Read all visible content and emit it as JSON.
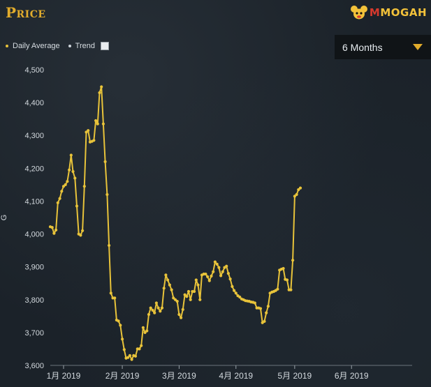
{
  "header": {
    "title": "Price",
    "logo_text_red": "M",
    "logo_text_rest": "MOGAH"
  },
  "legend": {
    "daily_average": "Daily Average",
    "trend": "Trend"
  },
  "range_select": {
    "value": "6 Months"
  },
  "colors": {
    "line": "#e8c33a",
    "accent": "#e1ac2c",
    "background": "#1b2229"
  },
  "chart_data": {
    "type": "line",
    "ylabel": "G",
    "ylim": [
      3600,
      4500
    ],
    "yticks": [
      "4,500",
      "4,400",
      "4,300",
      "4,200",
      "4,100",
      "4,000",
      "3,900",
      "3,800",
      "3,700",
      "3,600"
    ],
    "xtick_labels": [
      "1月 2019",
      "2月 2019",
      "3月 2019",
      "4月 2019",
      "5月 2019",
      "6月 2019"
    ],
    "xlim": [
      "2019-01-01",
      "2019-07-11"
    ],
    "xtick_dates": [
      "2019-01-08",
      "2019-02-08",
      "2019-03-10",
      "2019-04-09",
      "2019-05-10",
      "2019-06-09"
    ],
    "series": [
      {
        "name": "Daily Average",
        "points": [
          [
            "2019-01-01",
            4022
          ],
          [
            "2019-01-02",
            4020
          ],
          [
            "2019-01-03",
            4002
          ],
          [
            "2019-01-04",
            4012
          ],
          [
            "2019-01-05",
            4095
          ],
          [
            "2019-01-06",
            4108
          ],
          [
            "2019-01-07",
            4130
          ],
          [
            "2019-01-08",
            4145
          ],
          [
            "2019-01-09",
            4150
          ],
          [
            "2019-01-10",
            4160
          ],
          [
            "2019-01-11",
            4195
          ],
          [
            "2019-01-12",
            4240
          ],
          [
            "2019-01-13",
            4190
          ],
          [
            "2019-01-14",
            4170
          ],
          [
            "2019-01-15",
            4085
          ],
          [
            "2019-01-16",
            4000
          ],
          [
            "2019-01-17",
            3996
          ],
          [
            "2019-01-18",
            4010
          ],
          [
            "2019-01-19",
            4145
          ],
          [
            "2019-01-20",
            4310
          ],
          [
            "2019-01-21",
            4315
          ],
          [
            "2019-01-22",
            4280
          ],
          [
            "2019-01-23",
            4282
          ],
          [
            "2019-01-24",
            4285
          ],
          [
            "2019-01-25",
            4345
          ],
          [
            "2019-01-26",
            4335
          ],
          [
            "2019-01-27",
            4430
          ],
          [
            "2019-01-28",
            4448
          ],
          [
            "2019-01-29",
            4335
          ],
          [
            "2019-01-30",
            4220
          ],
          [
            "2019-01-31",
            4120
          ],
          [
            "2019-02-01",
            3965
          ],
          [
            "2019-02-02",
            3820
          ],
          [
            "2019-02-03",
            3805
          ],
          [
            "2019-02-04",
            3805
          ],
          [
            "2019-02-05",
            3738
          ],
          [
            "2019-02-06",
            3735
          ],
          [
            "2019-02-07",
            3722
          ],
          [
            "2019-02-08",
            3680
          ],
          [
            "2019-02-09",
            3648
          ],
          [
            "2019-02-10",
            3622
          ],
          [
            "2019-02-11",
            3624
          ],
          [
            "2019-02-12",
            3630
          ],
          [
            "2019-02-13",
            3618
          ],
          [
            "2019-02-14",
            3630
          ],
          [
            "2019-02-15",
            3628
          ],
          [
            "2019-02-16",
            3650
          ],
          [
            "2019-02-17",
            3650
          ],
          [
            "2019-02-18",
            3660
          ],
          [
            "2019-02-19",
            3715
          ],
          [
            "2019-02-20",
            3700
          ],
          [
            "2019-02-21",
            3705
          ],
          [
            "2019-02-22",
            3755
          ],
          [
            "2019-02-23",
            3775
          ],
          [
            "2019-02-24",
            3768
          ],
          [
            "2019-02-25",
            3760
          ],
          [
            "2019-02-26",
            3790
          ],
          [
            "2019-02-27",
            3775
          ],
          [
            "2019-02-28",
            3765
          ],
          [
            "2019-03-01",
            3775
          ],
          [
            "2019-03-02",
            3835
          ],
          [
            "2019-03-03",
            3875
          ],
          [
            "2019-03-04",
            3860
          ],
          [
            "2019-03-05",
            3845
          ],
          [
            "2019-03-06",
            3830
          ],
          [
            "2019-03-07",
            3805
          ],
          [
            "2019-03-08",
            3800
          ],
          [
            "2019-03-09",
            3795
          ],
          [
            "2019-03-10",
            3755
          ],
          [
            "2019-03-11",
            3745
          ],
          [
            "2019-03-12",
            3770
          ],
          [
            "2019-03-13",
            3815
          ],
          [
            "2019-03-14",
            3810
          ],
          [
            "2019-03-15",
            3825
          ],
          [
            "2019-03-16",
            3800
          ],
          [
            "2019-03-17",
            3825
          ],
          [
            "2019-03-18",
            3825
          ],
          [
            "2019-03-19",
            3860
          ],
          [
            "2019-03-20",
            3845
          ],
          [
            "2019-03-21",
            3800
          ],
          [
            "2019-03-22",
            3875
          ],
          [
            "2019-03-23",
            3878
          ],
          [
            "2019-03-24",
            3878
          ],
          [
            "2019-03-25",
            3870
          ],
          [
            "2019-03-26",
            3858
          ],
          [
            "2019-03-27",
            3872
          ],
          [
            "2019-03-28",
            3885
          ],
          [
            "2019-03-29",
            3915
          ],
          [
            "2019-03-30",
            3908
          ],
          [
            "2019-03-31",
            3898
          ],
          [
            "2019-04-01",
            3873
          ],
          [
            "2019-04-02",
            3885
          ],
          [
            "2019-04-03",
            3898
          ],
          [
            "2019-04-04",
            3902
          ],
          [
            "2019-04-05",
            3880
          ],
          [
            "2019-04-06",
            3863
          ],
          [
            "2019-04-07",
            3840
          ],
          [
            "2019-04-08",
            3828
          ],
          [
            "2019-04-09",
            3820
          ],
          [
            "2019-04-10",
            3812
          ],
          [
            "2019-04-11",
            3808
          ],
          [
            "2019-04-12",
            3802
          ],
          [
            "2019-04-13",
            3800
          ],
          [
            "2019-04-14",
            3797
          ],
          [
            "2019-04-15",
            3796
          ],
          [
            "2019-04-16",
            3795
          ],
          [
            "2019-04-17",
            3793
          ],
          [
            "2019-04-18",
            3792
          ],
          [
            "2019-04-19",
            3790
          ],
          [
            "2019-04-20",
            3775
          ],
          [
            "2019-04-21",
            3775
          ],
          [
            "2019-04-22",
            3773
          ],
          [
            "2019-04-23",
            3730
          ],
          [
            "2019-04-24",
            3734
          ],
          [
            "2019-04-25",
            3760
          ],
          [
            "2019-04-26",
            3780
          ],
          [
            "2019-04-27",
            3820
          ],
          [
            "2019-04-28",
            3823
          ],
          [
            "2019-04-29",
            3825
          ],
          [
            "2019-04-30",
            3828
          ],
          [
            "2019-05-01",
            3832
          ],
          [
            "2019-05-02",
            3890
          ],
          [
            "2019-05-03",
            3893
          ],
          [
            "2019-05-04",
            3895
          ],
          [
            "2019-05-05",
            3862
          ],
          [
            "2019-05-06",
            3860
          ],
          [
            "2019-05-07",
            3830
          ],
          [
            "2019-05-08",
            3830
          ],
          [
            "2019-05-09",
            3920
          ],
          [
            "2019-05-10",
            4115
          ],
          [
            "2019-05-11",
            4120
          ],
          [
            "2019-05-12",
            4135
          ],
          [
            "2019-05-13",
            4140
          ]
        ]
      }
    ]
  }
}
